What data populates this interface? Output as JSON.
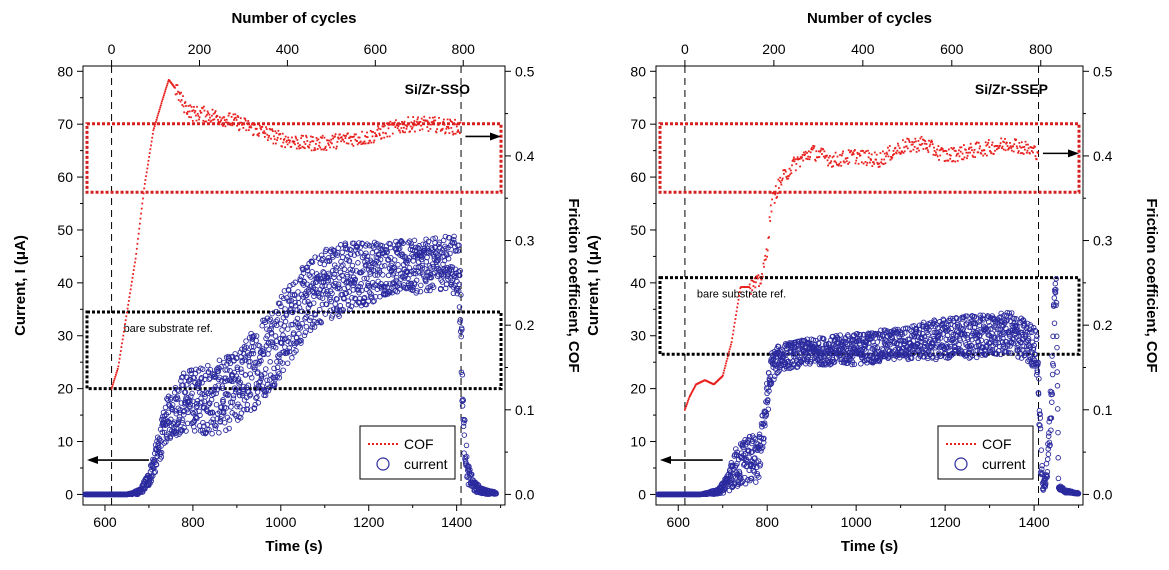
{
  "chart_data": [
    {
      "type": "scatter",
      "title": "Si/Zr-SSO",
      "xlabel": "Time (s)",
      "x2label": "Number of cycles",
      "ylabel": "Current, I (μA)",
      "y2label": "Friction coefficient, COF",
      "xlim": [
        550,
        1510
      ],
      "ylim": [
        -2,
        81
      ],
      "y2lim": [
        -0.0125,
        0.50625
      ],
      "xticks": [
        "600",
        "800",
        "1000",
        "1200",
        "1400"
      ],
      "x2ticks": [
        "0",
        "200",
        "400",
        "600",
        "800"
      ],
      "yticks": [
        "0",
        "10",
        "20",
        "30",
        "40",
        "50",
        "60",
        "70",
        "80"
      ],
      "y2ticks": [
        "0.0",
        "0.1",
        "0.2",
        "0.3",
        "0.4",
        "0.5"
      ],
      "legend": [
        "COF",
        "current"
      ],
      "annotations": {
        "bare_ref_label": "bare substrate ref.",
        "cof_box_cof_range": [
          0.357,
          0.438
        ],
        "bare_box_current_range": [
          20,
          34.5
        ],
        "start_line_time": 615,
        "end_line_time": 1410
      },
      "series": [
        {
          "name": "COF",
          "axis": "right",
          "color": "#e8201e",
          "x": [
            615,
            630,
            650,
            670,
            690,
            710,
            730,
            745,
            760,
            780,
            800,
            820,
            850,
            900,
            950,
            1000,
            1050,
            1100,
            1150,
            1200,
            1250,
            1300,
            1350,
            1380,
            1410
          ],
          "y": [
            0.125,
            0.15,
            0.215,
            0.28,
            0.365,
            0.43,
            0.465,
            0.49,
            0.48,
            0.46,
            0.45,
            0.45,
            0.447,
            0.44,
            0.43,
            0.42,
            0.415,
            0.415,
            0.42,
            0.422,
            0.432,
            0.438,
            0.437,
            0.435,
            0.433
          ]
        },
        {
          "name": "current",
          "axis": "left",
          "color": "#2b2a9e",
          "x": [
            555,
            600,
            650,
            680,
            700,
            720,
            740,
            760,
            780,
            800,
            850,
            900,
            950,
            1000,
            1050,
            1100,
            1150,
            1200,
            1250,
            1300,
            1350,
            1380,
            1405,
            1410,
            1415,
            1425,
            1440,
            1460,
            1490
          ],
          "y": [
            0,
            0,
            0,
            0.5,
            3,
            8,
            14,
            16,
            17.5,
            18,
            18,
            20,
            25,
            30,
            36,
            40,
            41,
            42,
            43,
            43,
            43.5,
            44,
            43,
            33,
            14,
            4,
            1.5,
            0.6,
            0.2
          ],
          "spread": [
            0,
            0,
            0,
            0.5,
            1.5,
            3,
            4,
            5,
            6,
            6,
            7,
            7,
            8,
            8,
            7,
            7,
            7,
            6,
            5,
            5,
            5,
            5,
            6,
            8,
            5,
            2,
            1,
            0.5,
            0.2
          ]
        }
      ]
    },
    {
      "type": "scatter",
      "title": "Si/Zr-SSEP",
      "xlabel": "Time (s)",
      "x2label": "Number of cycles",
      "ylabel": "Current, I (μA)",
      "y2label": "Friction coefficient, COF",
      "xlim": [
        550,
        1510
      ],
      "ylim": [
        -2,
        81
      ],
      "y2lim": [
        -0.0125,
        0.50625
      ],
      "xticks": [
        "600",
        "800",
        "1000",
        "1200",
        "1400"
      ],
      "x2ticks": [
        "0",
        "200",
        "400",
        "600",
        "800"
      ],
      "yticks": [
        "0",
        "10",
        "20",
        "30",
        "40",
        "50",
        "60",
        "70",
        "80"
      ],
      "y2ticks": [
        "0.0",
        "0.1",
        "0.2",
        "0.3",
        "0.4",
        "0.5"
      ],
      "legend": [
        "COF",
        "current"
      ],
      "annotations": {
        "bare_ref_label": "bare substrate ref.",
        "cof_box_cof_range": [
          0.357,
          0.438
        ],
        "bare_box_current_range": [
          26.5,
          41
        ],
        "start_line_time": 615,
        "end_line_time": 1410
      },
      "series": [
        {
          "name": "COF",
          "axis": "right",
          "color": "#e8201e",
          "x": [
            615,
            625,
            640,
            660,
            680,
            700,
            720,
            740,
            760,
            780,
            790,
            800,
            810,
            830,
            860,
            900,
            950,
            1000,
            1050,
            1100,
            1150,
            1200,
            1250,
            1300,
            1350,
            1400,
            1410
          ],
          "y": [
            0.1,
            0.115,
            0.13,
            0.135,
            0.13,
            0.14,
            0.18,
            0.245,
            0.245,
            0.25,
            0.26,
            0.29,
            0.345,
            0.37,
            0.39,
            0.405,
            0.395,
            0.4,
            0.395,
            0.41,
            0.415,
            0.4,
            0.405,
            0.41,
            0.415,
            0.405,
            0.405
          ]
        },
        {
          "name": "current",
          "axis": "left",
          "color": "#2b2a9e",
          "x": [
            555,
            600,
            650,
            690,
            710,
            730,
            760,
            780,
            795,
            810,
            830,
            900,
            1000,
            1100,
            1200,
            1300,
            1350,
            1380,
            1400,
            1405,
            1410,
            1415,
            1420,
            1430,
            1440,
            1445,
            1450,
            1455,
            1470,
            1500
          ],
          "y": [
            0,
            0,
            0,
            0.5,
            2,
            5,
            7,
            6,
            15,
            24,
            26,
            27,
            27.5,
            28.5,
            29.5,
            30,
            30.5,
            29,
            28,
            27,
            22,
            8,
            1,
            5,
            20,
            35,
            39,
            1.5,
            0.6,
            0.2
          ],
          "spread": [
            0,
            0,
            0,
            0.5,
            1.5,
            4,
            5,
            4,
            4,
            3,
            2.5,
            2.5,
            3,
            3,
            4,
            4,
            4,
            4,
            4,
            4,
            6,
            4,
            0.5,
            3,
            6,
            6,
            3,
            0.5,
            0.3,
            0.1
          ]
        }
      ]
    }
  ]
}
